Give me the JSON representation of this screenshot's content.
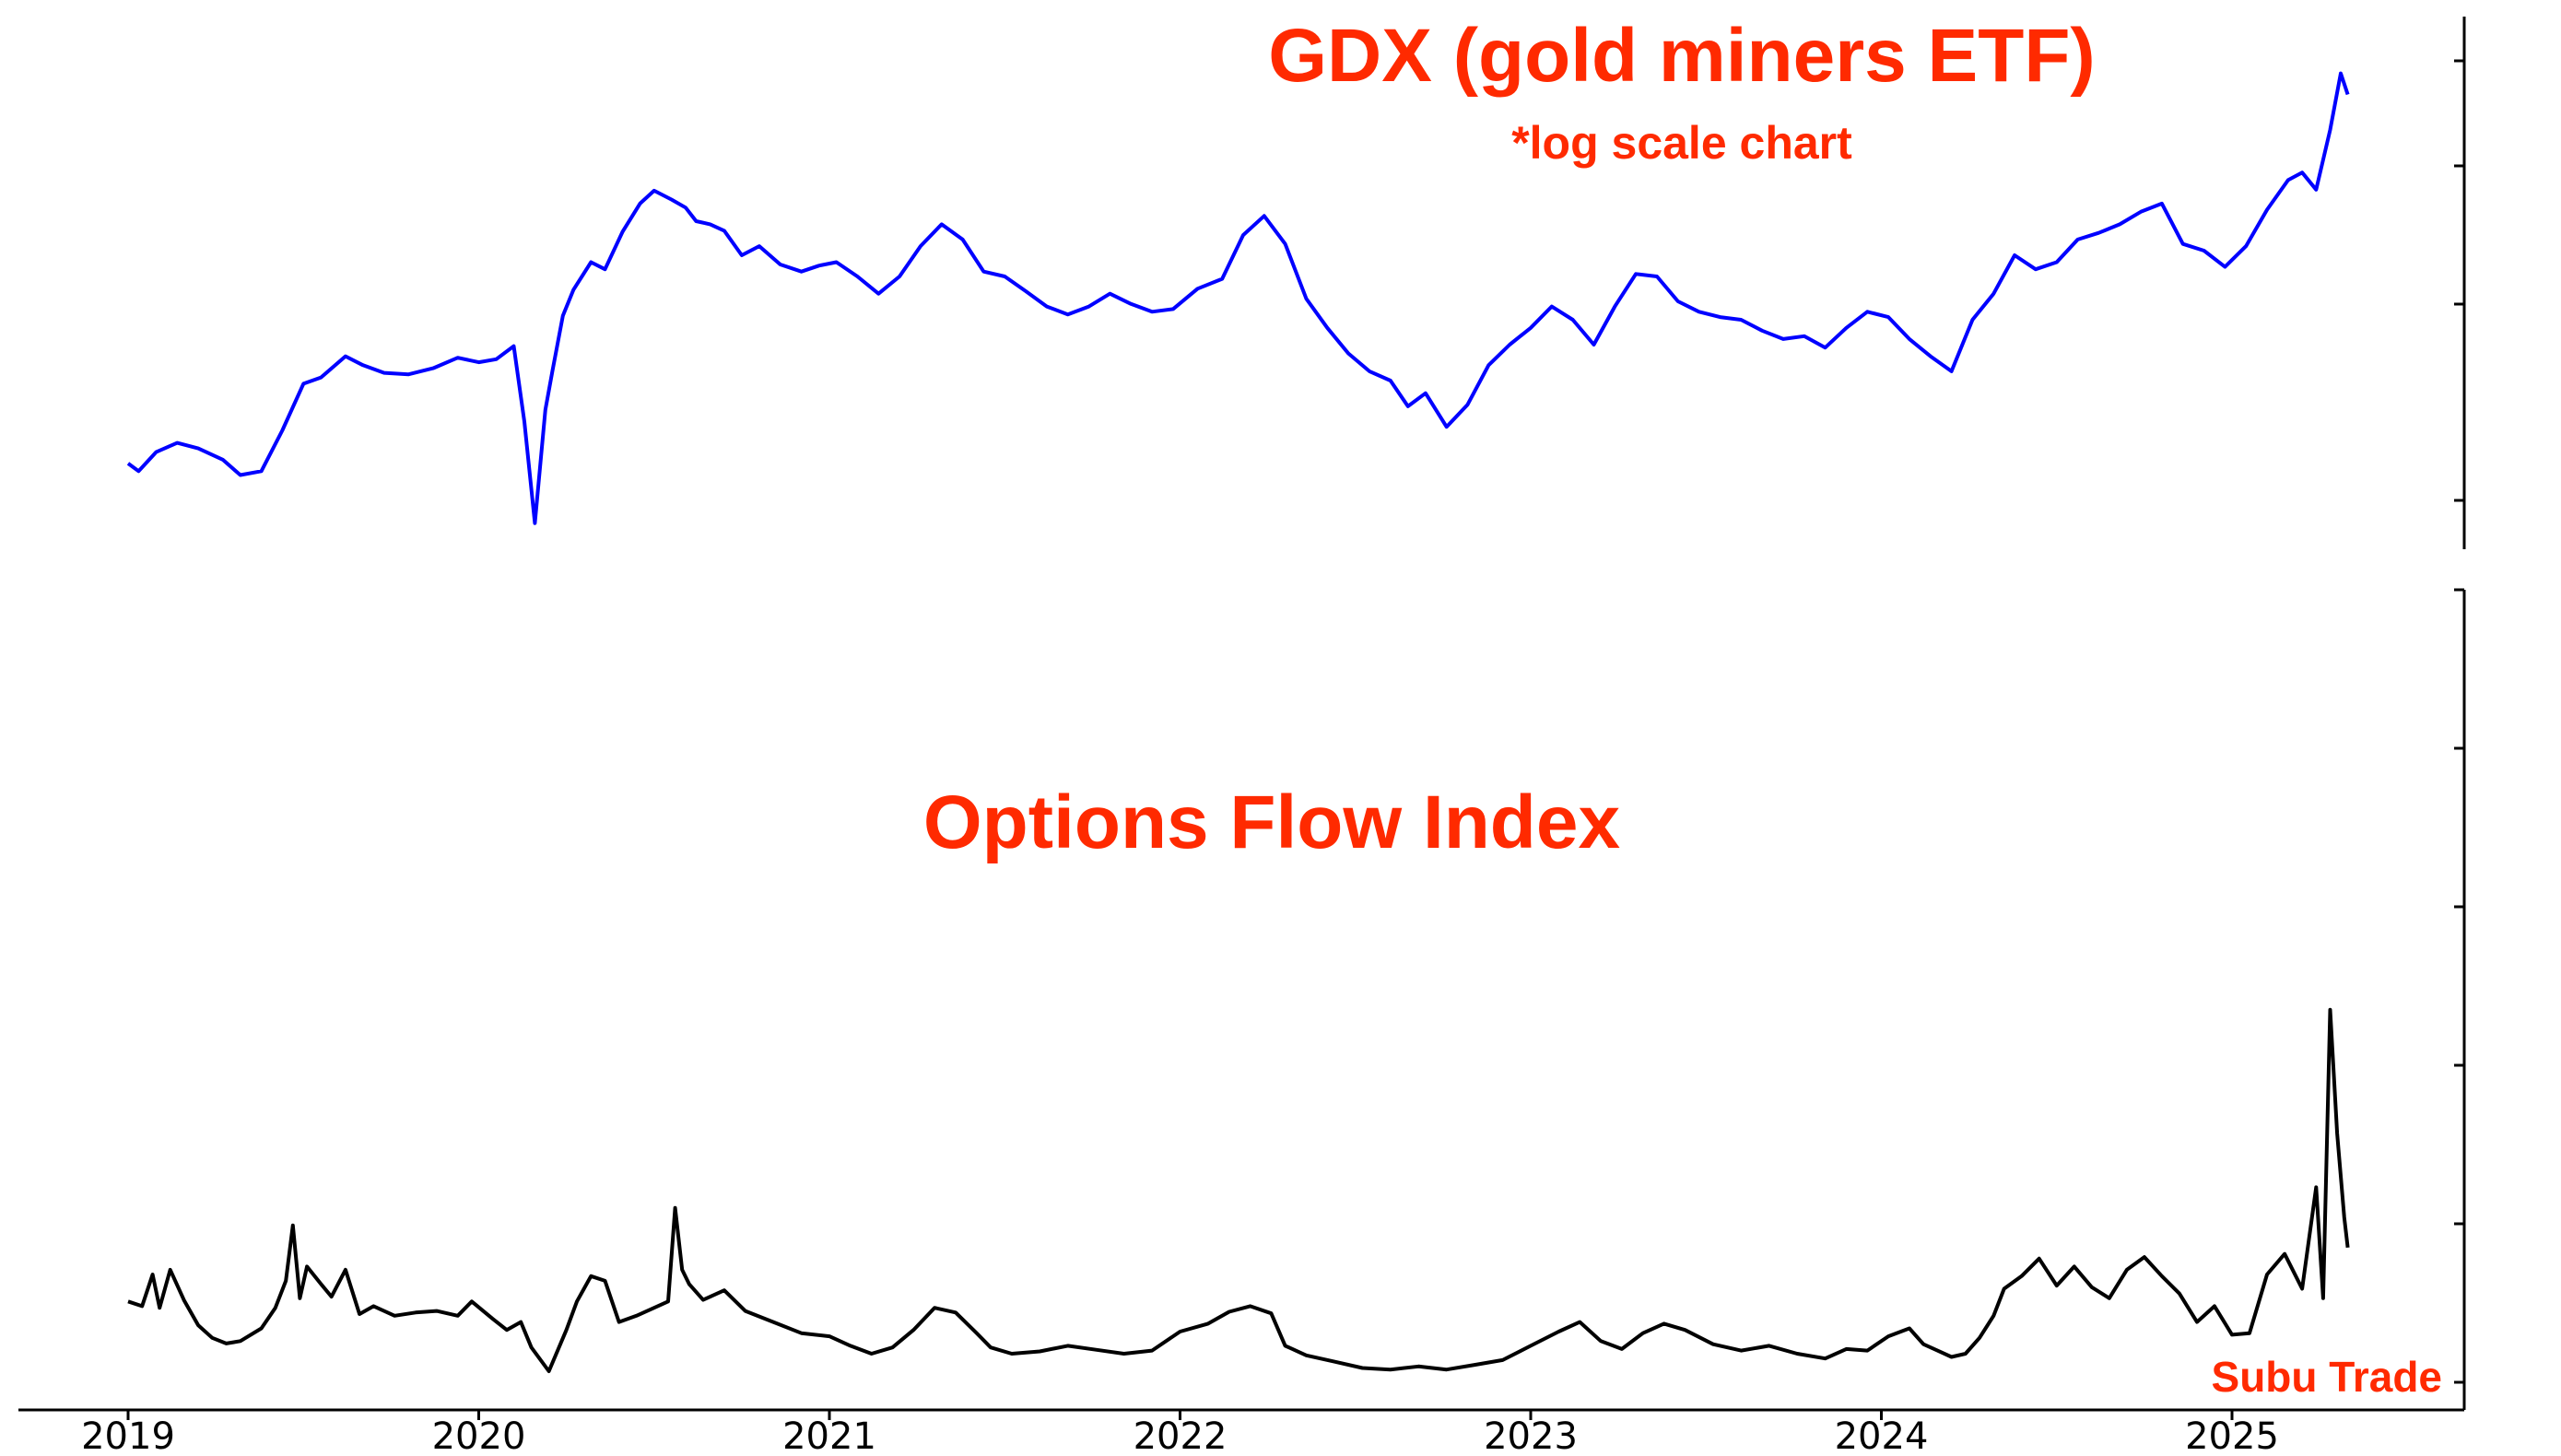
{
  "chart_data": [
    {
      "type": "line",
      "title": "GDX (gold miners ETF)",
      "subtitle": "*log scale chart",
      "y_scale": "log",
      "x_range": [
        2019.0,
        2025.35
      ],
      "ylim": [
        18.0,
        62.0
      ],
      "y_tick_labels_shown": false,
      "grid": false,
      "color": "#0000ff",
      "series": [
        {
          "x": [
            2019.0,
            2019.03,
            2019.08,
            2019.14,
            2019.2,
            2019.27,
            2019.32,
            2019.38,
            2019.44,
            2019.5,
            2019.55,
            2019.62,
            2019.67,
            2019.73,
            2019.8,
            2019.87,
            2019.94,
            2020.0,
            2020.05,
            2020.1,
            2020.13,
            2020.16,
            2020.19,
            2020.21,
            2020.24,
            2020.27,
            2020.32,
            2020.36,
            2020.41,
            2020.46,
            2020.5,
            2020.55,
            2020.59,
            2020.62,
            2020.66,
            2020.7,
            2020.75,
            2020.8,
            2020.86,
            2020.92,
            2020.97,
            2021.02,
            2021.08,
            2021.14,
            2021.2,
            2021.26,
            2021.32,
            2021.38,
            2021.44,
            2021.5,
            2021.56,
            2021.62,
            2021.68,
            2021.74,
            2021.8,
            2021.86,
            2021.92,
            2021.98,
            2022.05,
            2022.12,
            2022.18,
            2022.24,
            2022.3,
            2022.36,
            2022.42,
            2022.48,
            2022.54,
            2022.6,
            2022.65,
            2022.7,
            2022.76,
            2022.82,
            2022.88,
            2022.94,
            2023.0,
            2023.06,
            2023.12,
            2023.18,
            2023.24,
            2023.3,
            2023.36,
            2023.42,
            2023.48,
            2023.54,
            2023.6,
            2023.66,
            2023.72,
            2023.78,
            2023.84,
            2023.9,
            2023.96,
            2024.02,
            2024.08,
            2024.14,
            2024.2,
            2024.26,
            2024.32,
            2024.38,
            2024.44,
            2024.5,
            2024.56,
            2024.62,
            2024.68,
            2024.74,
            2024.8,
            2024.86,
            2024.92,
            2024.98,
            2025.04,
            2025.1,
            2025.16,
            2025.2,
            2025.24,
            2025.28,
            2025.31,
            2025.33
          ],
          "values": [
            21.2,
            20.8,
            21.8,
            22.3,
            22.0,
            21.4,
            20.6,
            20.8,
            23.0,
            25.8,
            26.2,
            27.6,
            27.0,
            26.5,
            26.4,
            26.8,
            27.5,
            27.2,
            27.4,
            28.3,
            23.5,
            18.3,
            24.2,
            26.6,
            30.5,
            32.5,
            34.8,
            34.2,
            37.5,
            40.2,
            41.5,
            40.6,
            39.8,
            38.5,
            38.2,
            37.6,
            35.4,
            36.2,
            34.6,
            34.0,
            34.5,
            34.8,
            33.6,
            32.2,
            33.6,
            36.2,
            38.2,
            36.8,
            34.0,
            33.6,
            32.4,
            31.2,
            30.6,
            31.2,
            32.2,
            31.4,
            30.8,
            31.0,
            32.6,
            33.4,
            37.2,
            39.0,
            36.4,
            31.8,
            29.6,
            27.8,
            26.6,
            26.0,
            24.4,
            25.2,
            23.2,
            24.5,
            27.0,
            28.4,
            29.6,
            31.2,
            30.2,
            28.4,
            31.2,
            33.8,
            33.6,
            31.6,
            30.8,
            30.4,
            30.2,
            29.4,
            28.8,
            29.0,
            28.2,
            29.6,
            30.8,
            30.4,
            28.8,
            27.6,
            26.6,
            30.2,
            32.2,
            35.4,
            34.2,
            34.8,
            36.8,
            37.4,
            38.2,
            39.4,
            40.2,
            36.4,
            35.8,
            34.4,
            36.2,
            39.6,
            42.6,
            43.4,
            41.6,
            48.2,
            55.4,
            52.6
          ]
        }
      ]
    },
    {
      "type": "line",
      "title": "Options Flow Index",
      "x_range": [
        2019.0,
        2025.35
      ],
      "ylim": [
        0,
        100
      ],
      "y_tick_labels_shown": false,
      "grid": false,
      "color": "#000000",
      "x_tick_labels": [
        "2019",
        "2020",
        "2021",
        "2022",
        "2023",
        "2024",
        "2025"
      ],
      "series": [
        {
          "x": [
            2019.0,
            2019.04,
            2019.07,
            2019.09,
            2019.12,
            2019.16,
            2019.2,
            2019.24,
            2019.28,
            2019.32,
            2019.38,
            2019.42,
            2019.45,
            2019.47,
            2019.49,
            2019.51,
            2019.55,
            2019.58,
            2019.62,
            2019.66,
            2019.7,
            2019.76,
            2019.82,
            2019.88,
            2019.94,
            2019.98,
            2020.04,
            2020.08,
            2020.12,
            2020.15,
            2020.2,
            2020.25,
            2020.28,
            2020.32,
            2020.36,
            2020.4,
            2020.45,
            2020.5,
            2020.54,
            2020.56,
            2020.58,
            2020.6,
            2020.64,
            2020.7,
            2020.76,
            2020.84,
            2020.92,
            2021.0,
            2021.06,
            2021.12,
            2021.18,
            2021.24,
            2021.3,
            2021.36,
            2021.42,
            2021.46,
            2021.52,
            2021.6,
            2021.68,
            2021.76,
            2021.84,
            2021.92,
            2022.0,
            2022.08,
            2022.14,
            2022.2,
            2022.26,
            2022.3,
            2022.36,
            2022.44,
            2022.52,
            2022.6,
            2022.68,
            2022.76,
            2022.84,
            2022.92,
            2023.0,
            2023.08,
            2023.14,
            2023.2,
            2023.26,
            2023.32,
            2023.38,
            2023.44,
            2023.52,
            2023.6,
            2023.68,
            2023.76,
            2023.84,
            2023.9,
            2023.96,
            2024.02,
            2024.08,
            2024.12,
            2024.16,
            2024.2,
            2024.24,
            2024.28,
            2024.32,
            2024.35,
            2024.4,
            2024.45,
            2024.5,
            2024.55,
            2024.6,
            2024.65,
            2024.7,
            2024.75,
            2024.8,
            2024.85,
            2024.9,
            2024.95,
            2025.0,
            2025.05,
            2025.1,
            2025.15,
            2025.2,
            2025.24,
            2025.26,
            2025.28,
            2025.3,
            2025.32,
            2025.33
          ],
          "values": [
            10.2,
            9.6,
            13.6,
            9.4,
            14.2,
            10.3,
            7.2,
            5.6,
            4.9,
            5.2,
            6.8,
            9.4,
            12.8,
            19.8,
            10.6,
            14.6,
            12.4,
            10.8,
            14.2,
            8.6,
            9.6,
            8.4,
            8.8,
            9.0,
            8.4,
            10.2,
            8.0,
            6.6,
            7.6,
            4.4,
            1.4,
            6.6,
            10.2,
            13.4,
            12.8,
            7.6,
            8.4,
            9.4,
            10.2,
            22.0,
            14.2,
            12.4,
            10.4,
            11.6,
            9.0,
            7.6,
            6.2,
            5.8,
            4.6,
            3.6,
            4.4,
            6.6,
            9.4,
            8.8,
            6.2,
            4.4,
            3.6,
            3.9,
            4.6,
            4.1,
            3.6,
            4.0,
            6.4,
            7.4,
            8.9,
            9.6,
            8.7,
            4.6,
            3.4,
            2.6,
            1.8,
            1.6,
            2.0,
            1.6,
            2.2,
            2.8,
            4.6,
            6.4,
            7.6,
            5.2,
            4.2,
            6.2,
            7.4,
            6.6,
            4.8,
            4.0,
            4.6,
            3.6,
            3.0,
            4.2,
            4.0,
            5.8,
            6.8,
            4.8,
            4.0,
            3.2,
            3.6,
            5.6,
            8.4,
            11.8,
            13.4,
            15.6,
            12.2,
            14.6,
            12.0,
            10.6,
            14.2,
            15.8,
            13.4,
            11.2,
            7.6,
            9.6,
            6.0,
            6.2,
            13.6,
            16.2,
            11.8,
            24.6,
            10.6,
            47.0,
            31.4,
            20.8,
            17.0
          ]
        }
      ]
    }
  ],
  "watermark": "Subu Trade"
}
